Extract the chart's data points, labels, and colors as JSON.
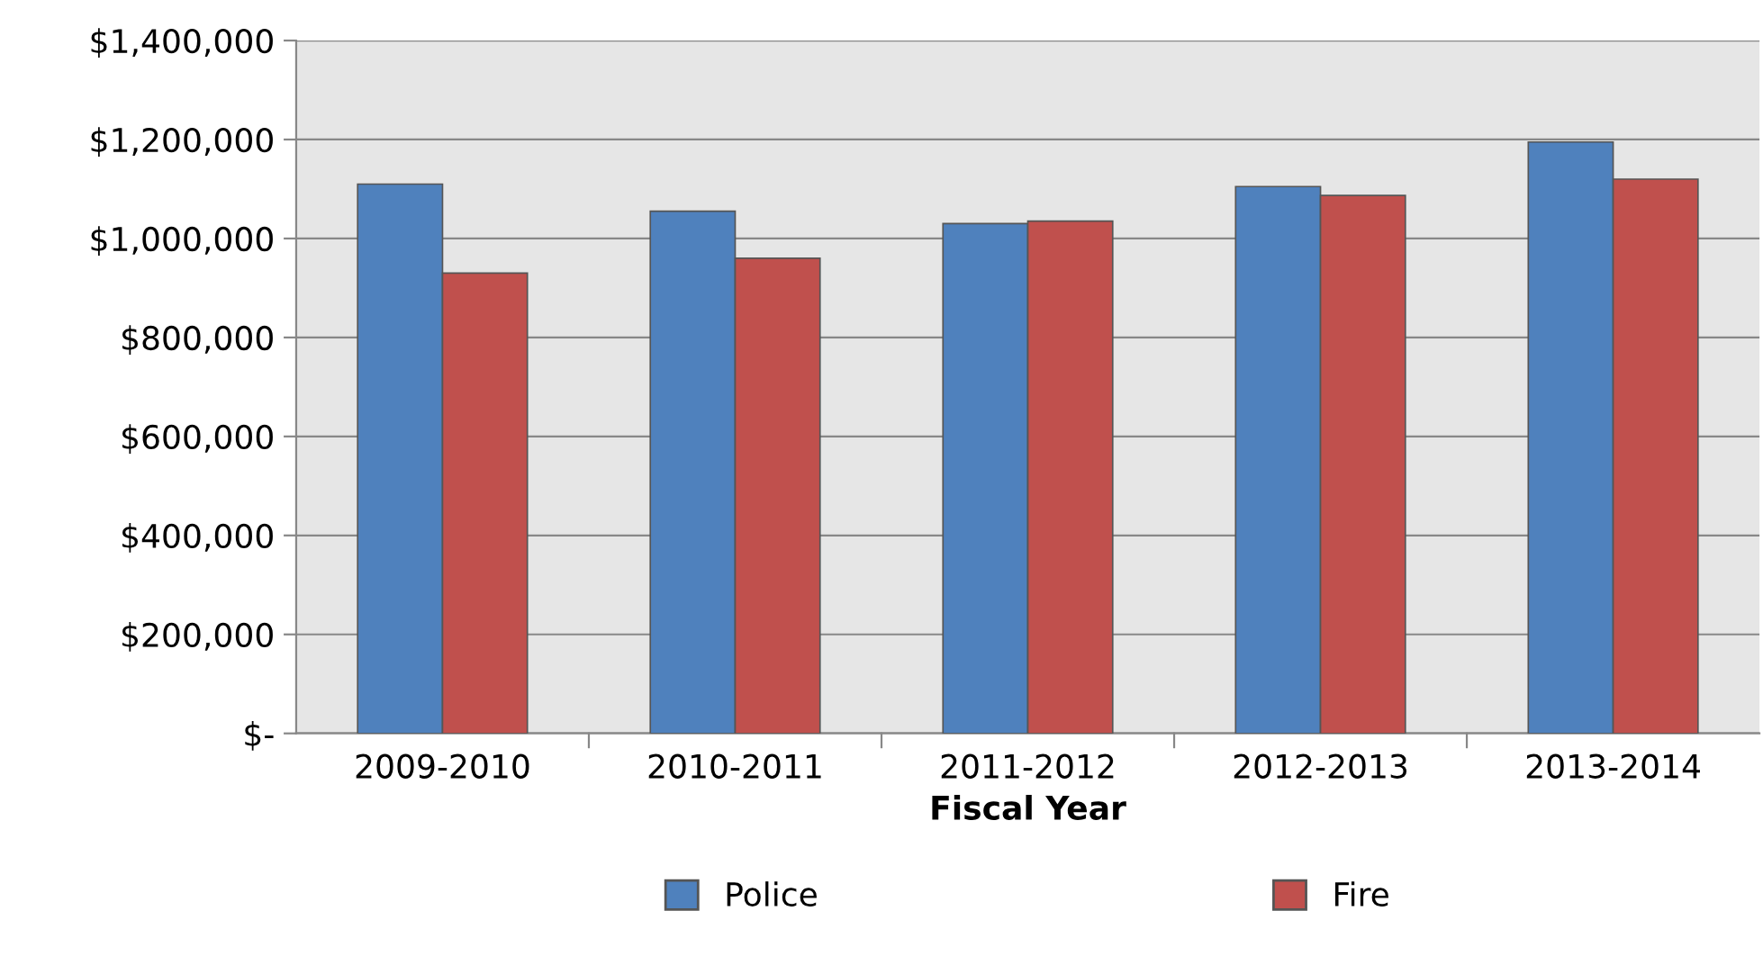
{
  "chart_data": {
    "type": "bar",
    "xlabel": "Fiscal Year",
    "categories": [
      "2009-2010",
      "2010-2011",
      "2011-2012",
      "2012-2013",
      "2013-2014"
    ],
    "series": [
      {
        "name": "Police",
        "color": "#4f81bd",
        "values": [
          1110000,
          1055000,
          1030000,
          1105000,
          1195000
        ]
      },
      {
        "name": "Fire",
        "color": "#c0504d",
        "values": [
          930000,
          960000,
          1035000,
          1087000,
          1120000
        ]
      }
    ],
    "ylim": [
      0,
      1400000
    ],
    "yticks": [
      {
        "value": 0,
        "label": "$-"
      },
      {
        "value": 200000,
        "label": "$200,000"
      },
      {
        "value": 400000,
        "label": "$400,000"
      },
      {
        "value": 600000,
        "label": "$600,000"
      },
      {
        "value": 800000,
        "label": "$800,000"
      },
      {
        "value": 1000000,
        "label": "$1,000,000"
      },
      {
        "value": 1200000,
        "label": "$1,200,000"
      },
      {
        "value": 1400000,
        "label": "$1,400,000"
      }
    ],
    "grid": "y",
    "legend": "bottom"
  }
}
